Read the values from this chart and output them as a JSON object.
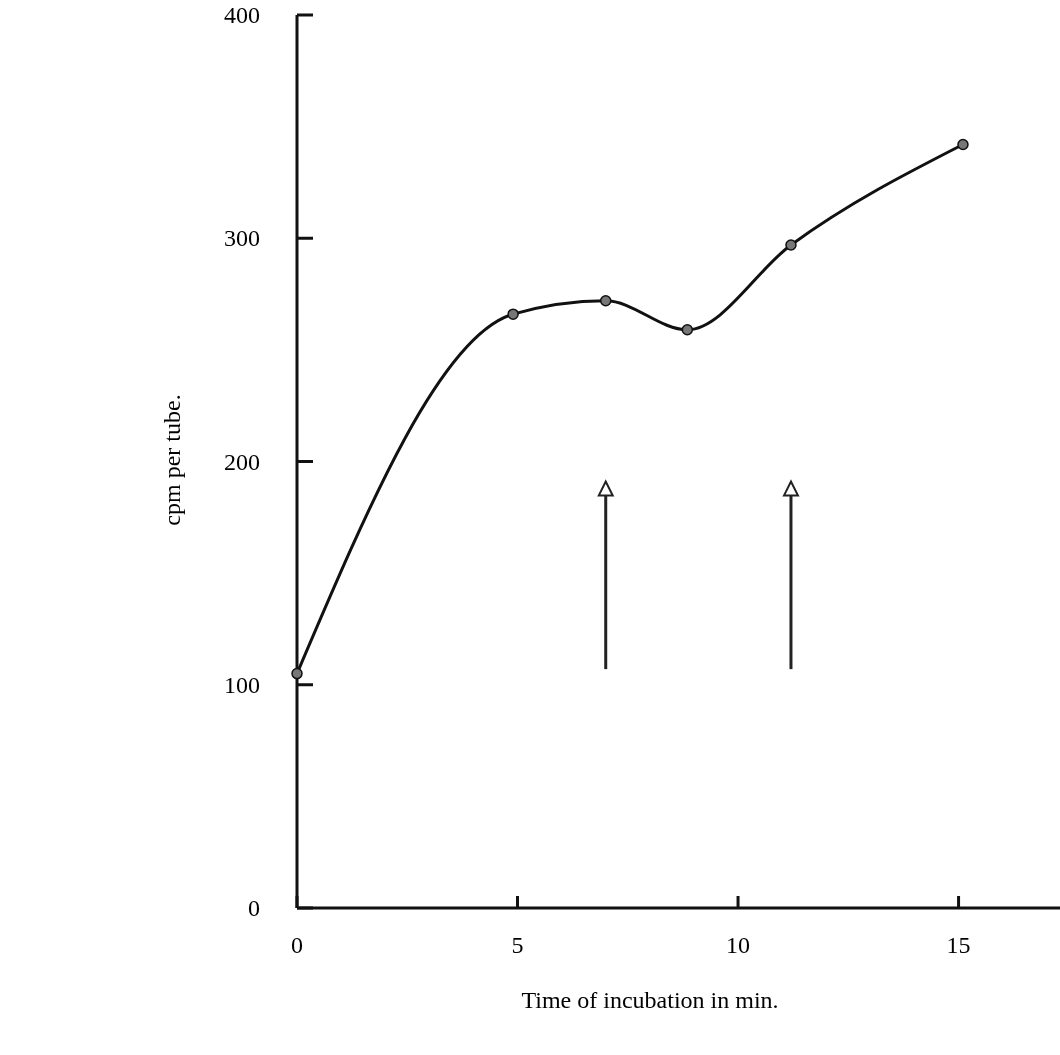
{
  "chart_data": {
    "type": "line",
    "xlabel": "Time of incubation in min.",
    "ylabel": "cpm per tube.",
    "x": [
      0,
      4.9,
      7.0,
      8.85,
      11.2,
      15.1
    ],
    "series": [
      {
        "color": "#111111",
        "values": [
          105,
          266,
          272,
          259,
          297,
          342
        ]
      }
    ],
    "xlim": [
      0,
      17.3
    ],
    "ylim": [
      0,
      400
    ],
    "xticks": [
      0,
      5,
      10,
      15
    ],
    "yticks": [
      0,
      100,
      200,
      300,
      400
    ],
    "marker": "circle",
    "line_style": "solid",
    "grid": false
  }
}
